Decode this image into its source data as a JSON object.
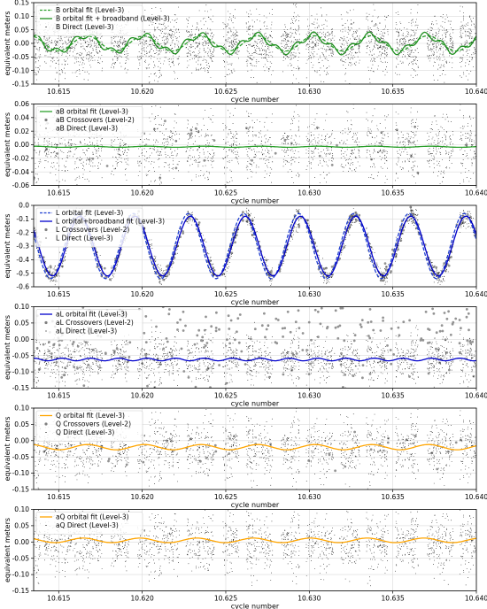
{
  "chart_data": [
    {
      "type": "scatter",
      "xlabel": "cycle number",
      "ylabel": "equivalent meters",
      "xlim": [
        10.6135,
        10.64
      ],
      "ylim": [
        -0.15,
        0.15
      ],
      "xticks": [
        "10.615",
        "10.620",
        "10.625",
        "10.630",
        "10.635",
        "10.640"
      ],
      "yticks": [
        "-0.15",
        "-0.10",
        "-0.05",
        "0.00",
        "0.05",
        "0.10",
        "0.15"
      ],
      "grid": true,
      "legend_position": "top-left",
      "series": [
        {
          "name": "B orbital fit (Level-3)",
          "kind": "dashed-line",
          "color": "#2ca02c",
          "base": 0.0,
          "amp": 0.028,
          "period": 0.0034,
          "phase": 0.4
        },
        {
          "name": "B orbital fit + broadband (Level-3)",
          "kind": "line",
          "color": "#1f8f1f",
          "base": 0.0,
          "amp": 0.03,
          "period": 0.0034,
          "phase": 0.5
        },
        {
          "name": "B Direct (Level-3)",
          "kind": "points",
          "color": "#000000",
          "center": 0.0,
          "spread": 0.055,
          "clip": 0.15
        }
      ]
    },
    {
      "type": "scatter",
      "xlabel": "cycle number",
      "ylabel": "equivalent meters",
      "xlim": [
        10.6135,
        10.64
      ],
      "ylim": [
        -0.06,
        0.06
      ],
      "xticks": [
        "10.615",
        "10.620",
        "10.625",
        "10.630",
        "10.635",
        "10.640"
      ],
      "yticks": [
        "-0.06",
        "-0.04",
        "-0.02",
        "0.00",
        "0.02",
        "0.04",
        "0.06"
      ],
      "grid": true,
      "legend_position": "top-left",
      "series": [
        {
          "name": "aB orbital fit (Level-3)",
          "kind": "line",
          "color": "#2ca02c",
          "base": -0.003,
          "amp": 0.0008,
          "period": 0.0034,
          "phase": 0.0
        },
        {
          "name": "aB Crossovers (Level-2)",
          "kind": "grey-points",
          "color": "#808080"
        },
        {
          "name": "aB Direct (Level-3)",
          "kind": "points",
          "color": "#000000",
          "center": -0.003,
          "spread": 0.025,
          "clip": 0.06
        }
      ]
    },
    {
      "type": "scatter",
      "xlabel": "cycle number",
      "ylabel": "equivalent meters",
      "xlim": [
        10.6135,
        10.64
      ],
      "ylim": [
        -0.6,
        0.0
      ],
      "xticks": [
        "10.615",
        "10.620",
        "10.625",
        "10.630",
        "10.635",
        "10.640"
      ],
      "yticks": [
        "-0.6",
        "-0.5",
        "-0.4",
        "-0.3",
        "-0.2",
        "-0.1",
        "0.0"
      ],
      "grid": true,
      "legend_position": "top-left",
      "series": [
        {
          "name": "L orbital fit (Level-3)",
          "kind": "dashed-line",
          "color": "#1f3fd0",
          "base": -0.3,
          "amp": 0.24,
          "period": 0.0033,
          "phase": 1.2
        },
        {
          "name": "L orbital+broadband fit  (Level-3)",
          "kind": "line",
          "color": "#0000cc",
          "base": -0.3,
          "amp": 0.22,
          "period": 0.0033,
          "phase": 1.0
        },
        {
          "name": "L Crossovers (Level-2)",
          "kind": "grey-points",
          "color": "#808080"
        },
        {
          "name": "L Direct (Level-3)",
          "kind": "points",
          "color": "#000000",
          "center": -0.3,
          "spread": 0.03,
          "clip": 0.6
        }
      ]
    },
    {
      "type": "scatter",
      "xlabel": "cycle number",
      "ylabel": "equivalent meters",
      "xlim": [
        10.6135,
        10.64
      ],
      "ylim": [
        -0.15,
        0.1
      ],
      "xticks": [
        "10.615",
        "10.620",
        "10.625",
        "10.630",
        "10.635",
        "10.640"
      ],
      "yticks": [
        "-0.15",
        "-0.10",
        "-0.05",
        "0.00",
        "0.05",
        "0.10"
      ],
      "grid": true,
      "legend_position": "top-left",
      "series": [
        {
          "name": "aL orbital fit (Level-3)",
          "kind": "line",
          "color": "#0000cc",
          "base": -0.062,
          "amp": 0.004,
          "period": 0.0017,
          "phase": 0.0
        },
        {
          "name": "aL Crossovers (Level-2)",
          "kind": "grey-points",
          "color": "#808080"
        },
        {
          "name": "aL Direct (Level-3)",
          "kind": "points",
          "color": "#000000",
          "center": -0.06,
          "spread": 0.035,
          "clip": 0.15
        }
      ]
    },
    {
      "type": "scatter",
      "xlabel": "cycle number",
      "ylabel": "equivalent meters",
      "xlim": [
        10.6135,
        10.64
      ],
      "ylim": [
        -0.15,
        0.1
      ],
      "xticks": [
        "10.615",
        "10.620",
        "10.625",
        "10.630",
        "10.635",
        "10.640"
      ],
      "yticks": [
        "-0.15",
        "-0.10",
        "-0.05",
        "0.00",
        "0.05",
        "0.10"
      ],
      "grid": true,
      "legend_position": "top-left",
      "series": [
        {
          "name": "Q orbital fit (Level-3)",
          "kind": "line",
          "color": "#ffa500",
          "base": -0.02,
          "amp": 0.008,
          "period": 0.0034,
          "phase": 0.3
        },
        {
          "name": "Q Crossovers (Level-2)",
          "kind": "grey-points",
          "color": "#808080"
        },
        {
          "name": "Q Direct (Level-3)",
          "kind": "points",
          "color": "#000000",
          "center": -0.02,
          "spread": 0.045,
          "clip": 0.15
        }
      ]
    },
    {
      "type": "scatter",
      "xlabel": "cycle number",
      "ylabel": "equivalent meters",
      "xlim": [
        10.6135,
        10.64
      ],
      "ylim": [
        -0.15,
        0.1
      ],
      "xticks": [
        "10.615",
        "10.620",
        "10.625",
        "10.630",
        "10.635",
        "10.640"
      ],
      "yticks": [
        "-0.15",
        "-0.10",
        "-0.05",
        "0.00",
        "0.05",
        "0.10"
      ],
      "grid": true,
      "legend_position": "top-left",
      "series": [
        {
          "name": "aQ orbital fit (Level-3)",
          "kind": "line",
          "color": "#ffa500",
          "base": 0.005,
          "amp": 0.007,
          "period": 0.0034,
          "phase": 0.8
        },
        {
          "name": "aQ Direct (Level-3)",
          "kind": "points",
          "color": "#000000",
          "center": 0.0,
          "spread": 0.045,
          "clip": 0.15
        }
      ]
    }
  ]
}
